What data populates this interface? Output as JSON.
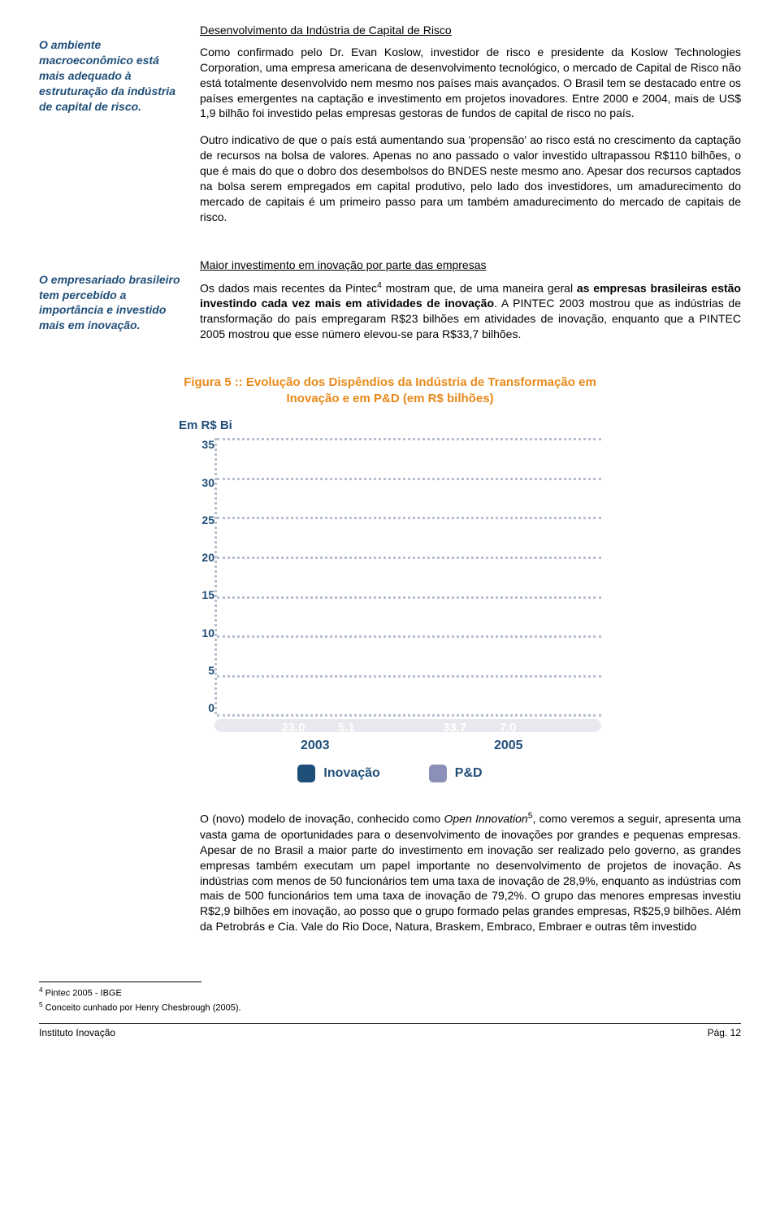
{
  "section1": {
    "sidebar": "O ambiente macroeconômico está mais adequado à estruturação da indústria de capital de risco.",
    "heading": "Desenvolvimento da Indústria de Capital de Risco",
    "p1": "Como confirmado pelo Dr. Evan Koslow, investidor de risco e presidente da Koslow Technologies Corporation, uma empresa americana de desenvolvimento tecnológico, o mercado de Capital de Risco não está totalmente desenvolvido nem mesmo nos países mais avançados. O Brasil tem se destacado entre os países emergentes na captação e investimento em projetos inovadores. Entre 2000 e 2004, mais de US$ 1,9 bilhão foi investido pelas empresas gestoras de fundos de capital de risco no país.",
    "p2": "Outro indicativo de que o país está aumentando sua 'propensão' ao risco está no crescimento da captação de recursos na bolsa de valores. Apenas no ano passado o valor investido ultrapassou R$110 bilhões, o que é mais do que o dobro dos desembolsos do BNDES neste mesmo ano. Apesar dos recursos captados na bolsa serem empregados em capital produtivo, pelo lado dos investidores, um amadurecimento do mercado de capitais é um primeiro passo para um também amadurecimento do mercado de capitais de risco."
  },
  "section2": {
    "sidebar": "O empresariado brasileiro tem percebido a importância e investido mais em inovação.",
    "heading": "Maior investimento em inovação por parte das empresas",
    "p1a": "Os dados mais recentes da Pintec",
    "p1b": " mostram que, de uma maneira geral ",
    "p1c": "as empresas brasileiras estão investindo cada vez mais em atividades de inovação",
    "p1d": ". A PINTEC 2003 mostrou que as indústrias de transformação do país empregaram R$23 bilhões em atividades de inovação, enquanto que a PINTEC 2005 mostrou que esse número elevou-se para R$33,7 bilhões."
  },
  "chart": {
    "title": "Figura 5 :: Evolução dos Dispêndios da Indústria de Transformação em Inovação e em P&D (em R$ bilhões)",
    "ylabel": "Em R$ Bi",
    "yticks": [
      "35",
      "30",
      "25",
      "20",
      "15",
      "10",
      "5",
      "0"
    ],
    "ymax": 35,
    "categories": [
      "2003",
      "2005"
    ],
    "series": [
      {
        "name": "Inovação",
        "color": "#1f4e79",
        "values": [
          23.0,
          33.7
        ],
        "labels": [
          "23.0",
          "33.7"
        ]
      },
      {
        "name": "P&D",
        "color": "#8a90b8",
        "values": [
          5.1,
          7.0
        ],
        "labels": [
          "5.1",
          "7.0"
        ]
      }
    ],
    "grid_color": "#b7c0d0",
    "base_color": "#e7e9ee",
    "text_color": "#1f4e79",
    "group_positions_pct": [
      13,
      55
    ],
    "xlabel_widths_pct": [
      52,
      48
    ]
  },
  "section3": {
    "p1a": "O (novo) modelo de inovação, conhecido como ",
    "p1_em": "Open Innovation",
    "p1b": ", como veremos a seguir, apresenta uma vasta gama de oportunidades para o desenvolvimento de inovações por grandes e pequenas empresas. Apesar de no Brasil a maior parte do investimento em inovação ser realizado pelo governo, as grandes empresas também executam um papel importante no desenvolvimento de projetos de inovação. As indústrias com menos de 50 funcionários tem uma taxa de inovação de 28,9%, enquanto as indústrias com mais de 500 funcionários tem uma taxa de inovação de 79,2%. O grupo das menores empresas investiu R$2,9 bilhões em inovação, ao posso que o grupo formado pelas grandes empresas, R$25,9 bilhões. Além da Petrobrás e Cia. Vale do Rio Doce, Natura, Braskem, Embraco, Embraer e outras têm investido"
  },
  "footnotes": {
    "fn4": " Pintec 2005 - IBGE",
    "fn5": " Conceito cunhado por Henry Chesbrough (2005)."
  },
  "footer": {
    "left": "Instituto Inovação",
    "right": "Pág. 12"
  }
}
